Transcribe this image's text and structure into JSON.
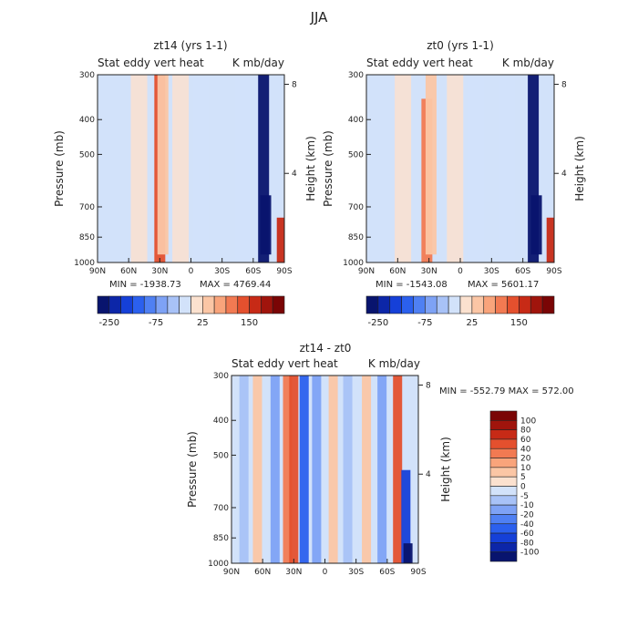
{
  "figure_title": "JJA",
  "chart_data": [
    {
      "type": "heatmap",
      "title": "zt14 (yrs 1-1)",
      "subtitle_left": "Stat eddy vert heat",
      "subtitle_right": "K mb/day",
      "xlabel": "",
      "ylabel": "Pressure (mb)",
      "y2label": "Height (km)",
      "x_ticks": [
        "90N",
        "60N",
        "30N",
        "0",
        "30S",
        "60S",
        "90S"
      ],
      "x_range": [
        90,
        -90
      ],
      "y_ticks": [
        300,
        400,
        500,
        700,
        850,
        1000
      ],
      "y_range": [
        300,
        1000
      ],
      "y_scale": "log",
      "y2_ticks": [
        8,
        4
      ],
      "min_label": "MIN = -1938.73",
      "max_label": "MAX = 4769.44",
      "colorbar_ticks": [
        "-250",
        "-75",
        "25",
        "150"
      ],
      "colorbar_levels": [
        -250,
        -200,
        -150,
        -100,
        -75,
        -50,
        -25,
        0,
        25,
        50,
        75,
        100,
        150,
        200,
        250
      ],
      "features": [
        {
          "lat": 30,
          "p_top": 300,
          "p_bottom": 1000,
          "value": 120,
          "kind": "warm-column"
        },
        {
          "lat": 27,
          "p_top": 300,
          "p_bottom": 950,
          "value": 40,
          "kind": "warm-column"
        },
        {
          "lat": -70,
          "p_top": 300,
          "p_bottom": 1000,
          "value": -250,
          "kind": "cold-column"
        },
        {
          "lat": -72,
          "p_top": 650,
          "p_bottom": 950,
          "value": -300,
          "kind": "cold-column"
        },
        {
          "lat": -88,
          "p_top": 750,
          "p_bottom": 1000,
          "value": 200,
          "kind": "warm-edge"
        },
        {
          "lat": 50,
          "p_top": 300,
          "p_bottom": 1000,
          "value": 10,
          "kind": "weak"
        },
        {
          "lat": -10,
          "p_top": 300,
          "p_bottom": 1000,
          "value": -10,
          "kind": "weak"
        },
        {
          "lat": 10,
          "p_top": 300,
          "p_bottom": 1000,
          "value": 10,
          "kind": "weak"
        },
        {
          "lat": -50,
          "p_top": 300,
          "p_bottom": 1000,
          "value": -10,
          "kind": "weak"
        }
      ]
    },
    {
      "type": "heatmap",
      "title": "zt0 (yrs 1-1)",
      "subtitle_left": "Stat eddy vert heat",
      "subtitle_right": "K mb/day",
      "xlabel": "",
      "ylabel": "Pressure (mb)",
      "y2label": "Height (km)",
      "x_ticks": [
        "90N",
        "60N",
        "30N",
        "0",
        "30S",
        "60S",
        "90S"
      ],
      "x_range": [
        90,
        -90
      ],
      "y_ticks": [
        300,
        400,
        500,
        700,
        850,
        1000
      ],
      "y_range": [
        300,
        1000
      ],
      "y_scale": "log",
      "y2_ticks": [
        8,
        4
      ],
      "min_label": "MIN = -1543.08",
      "max_label": "MAX = 5601.17",
      "colorbar_ticks": [
        "-250",
        "-75",
        "25",
        "150"
      ],
      "colorbar_levels": [
        -250,
        -200,
        -150,
        -100,
        -75,
        -50,
        -25,
        0,
        25,
        50,
        75,
        100,
        150,
        200,
        250
      ],
      "features": [
        {
          "lat": 32,
          "p_top": 350,
          "p_bottom": 1000,
          "value": 90,
          "kind": "warm-column"
        },
        {
          "lat": 28,
          "p_top": 300,
          "p_bottom": 950,
          "value": 40,
          "kind": "warm-column"
        },
        {
          "lat": -70,
          "p_top": 300,
          "p_bottom": 1000,
          "value": -250,
          "kind": "cold-column"
        },
        {
          "lat": -73,
          "p_top": 650,
          "p_bottom": 950,
          "value": -300,
          "kind": "cold-column"
        },
        {
          "lat": -88,
          "p_top": 750,
          "p_bottom": 1000,
          "value": 200,
          "kind": "warm-edge"
        },
        {
          "lat": 55,
          "p_top": 300,
          "p_bottom": 1000,
          "value": 10,
          "kind": "weak"
        },
        {
          "lat": -15,
          "p_top": 300,
          "p_bottom": 1000,
          "value": -10,
          "kind": "weak"
        },
        {
          "lat": 5,
          "p_top": 300,
          "p_bottom": 1000,
          "value": 10,
          "kind": "weak"
        },
        {
          "lat": -45,
          "p_top": 300,
          "p_bottom": 1000,
          "value": -10,
          "kind": "weak"
        }
      ]
    },
    {
      "type": "heatmap",
      "title": "zt14 - zt0",
      "subtitle_left": "Stat eddy vert heat",
      "subtitle_right": "K mb/day",
      "xlabel": "",
      "ylabel": "Pressure (mb)",
      "y2label": "Height (km)",
      "x_ticks": [
        "90N",
        "60N",
        "30N",
        "0",
        "30S",
        "60S",
        "90S"
      ],
      "x_range": [
        90,
        -90
      ],
      "y_ticks": [
        300,
        400,
        500,
        700,
        850,
        1000
      ],
      "y_range": [
        300,
        1000
      ],
      "y_scale": "log",
      "y2_ticks": [
        8,
        4
      ],
      "min_max_label": "MIN = -552.79   MAX = 572.00",
      "colorbar_ticks": [
        "100",
        "80",
        "60",
        "40",
        "20",
        "10",
        "5",
        "0",
        "-5",
        "-10",
        "-20",
        "-40",
        "-60",
        "-80",
        "-100"
      ],
      "colorbar_levels": [
        -100,
        -80,
        -60,
        -40,
        -20,
        -10,
        -5,
        0,
        5,
        10,
        20,
        40,
        60,
        80,
        100
      ],
      "features": [
        {
          "lat": 78,
          "p_top": 300,
          "p_bottom": 1000,
          "value": -8,
          "kind": "stripe"
        },
        {
          "lat": 65,
          "p_top": 300,
          "p_bottom": 1000,
          "value": 8,
          "kind": "stripe"
        },
        {
          "lat": 48,
          "p_top": 300,
          "p_bottom": 1000,
          "value": -15,
          "kind": "stripe"
        },
        {
          "lat": 36,
          "p_top": 300,
          "p_bottom": 1000,
          "value": 40,
          "kind": "stripe"
        },
        {
          "lat": 30,
          "p_top": 300,
          "p_bottom": 1000,
          "value": 60,
          "kind": "stripe"
        },
        {
          "lat": 20,
          "p_top": 300,
          "p_bottom": 1000,
          "value": -40,
          "kind": "stripe"
        },
        {
          "lat": 8,
          "p_top": 300,
          "p_bottom": 1000,
          "value": -10,
          "kind": "stripe"
        },
        {
          "lat": -8,
          "p_top": 300,
          "p_bottom": 1000,
          "value": 8,
          "kind": "stripe"
        },
        {
          "lat": -22,
          "p_top": 300,
          "p_bottom": 1000,
          "value": -8,
          "kind": "stripe"
        },
        {
          "lat": -40,
          "p_top": 300,
          "p_bottom": 1000,
          "value": 8,
          "kind": "stripe"
        },
        {
          "lat": -55,
          "p_top": 300,
          "p_bottom": 1000,
          "value": -15,
          "kind": "stripe"
        },
        {
          "lat": -70,
          "p_top": 300,
          "p_bottom": 1000,
          "value": 60,
          "kind": "stripe"
        },
        {
          "lat": -78,
          "p_top": 550,
          "p_bottom": 1000,
          "value": -60,
          "kind": "stripe"
        },
        {
          "lat": -80,
          "p_top": 880,
          "p_bottom": 1000,
          "value": -100,
          "kind": "stripe"
        }
      ]
    }
  ],
  "colors": {
    "scale_cold": [
      "#08146e",
      "#0c26a8",
      "#1540d8",
      "#2b60ee",
      "#4f80f3",
      "#7ea2f5",
      "#a8c2f7",
      "#d2e2fa"
    ],
    "scale_warm": [
      "#fbe1cf",
      "#fbc6a5",
      "#f9a47b",
      "#f27a52",
      "#e4502e",
      "#c72a16",
      "#a0140c",
      "#7a0505"
    ],
    "frame": "#222222"
  }
}
